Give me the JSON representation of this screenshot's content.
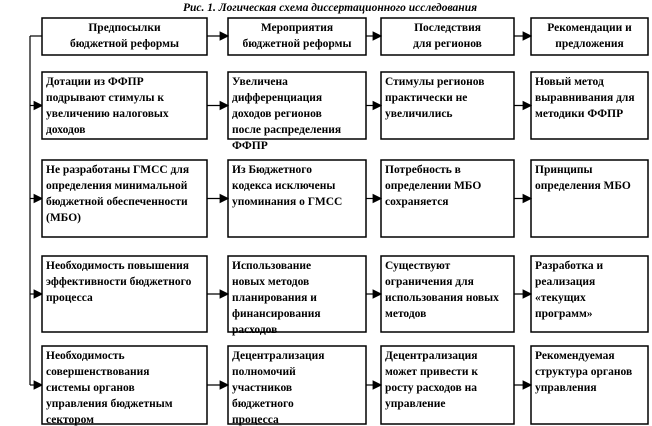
{
  "header": {
    "title": "Рис. 1. Логическая схема диссертационного исследования"
  },
  "columns": [
    {
      "lines": [
        "Предпосылки",
        "бюджетной реформы"
      ]
    },
    {
      "lines": [
        "Мероприятия",
        "бюджетной реформы"
      ]
    },
    {
      "lines": [
        "Последствия",
        "для регионов"
      ]
    },
    {
      "lines": [
        "Рекомендации и",
        "предложения"
      ]
    }
  ],
  "rows": [
    [
      {
        "lines": [
          "Дотации из ФФПР",
          "подрывают стимулы к",
          "увеличению налоговых",
          "доходов"
        ]
      },
      {
        "lines": [
          "Увеличена",
          "дифференциация",
          "доходов регионов",
          "после распределения",
          "ФФПР"
        ]
      },
      {
        "lines": [
          "Стимулы регионов",
          "практически не",
          "увеличились"
        ]
      },
      {
        "lines": [
          "Новый метод",
          "выравнивания для",
          "методики ФФПР"
        ]
      }
    ],
    [
      {
        "lines": [
          "Не разработаны ГМСС для",
          "определения минимальной",
          "бюджетной обеспеченности",
          "(МБО)"
        ]
      },
      {
        "lines": [
          "Из Бюджетного",
          "кодекса исключены",
          "упоминания о ГМСС"
        ]
      },
      {
        "lines": [
          "Потребность в",
          "определении МБО",
          "сохраняется"
        ]
      },
      {
        "lines": [
          "Принципы",
          "определения МБО"
        ]
      }
    ],
    [
      {
        "lines": [
          "Необходимость повышения",
          "эффективности бюджетного",
          "процесса"
        ]
      },
      {
        "lines": [
          "Использование",
          "новых методов",
          "планирования и",
          "финансирования",
          "расходов"
        ]
      },
      {
        "lines": [
          "Существуют",
          "ограничения для",
          "использования новых",
          "методов"
        ]
      },
      {
        "lines": [
          "Разработка и",
          "реализация",
          "«текущих",
          "программ»"
        ]
      }
    ],
    [
      {
        "lines": [
          "Необходимость",
          "совершенствования",
          "системы органов",
          "управления бюджетным",
          "сектором"
        ]
      },
      {
        "lines": [
          "Децентрализация",
          "полномочий",
          "участников",
          "бюджетного",
          "процесса"
        ]
      },
      {
        "lines": [
          "Децентрализация",
          "может привести к",
          "росту расходов на",
          "управление"
        ]
      },
      {
        "lines": [
          "Рекомендуемая",
          "структура органов",
          "управления"
        ]
      }
    ]
  ]
}
